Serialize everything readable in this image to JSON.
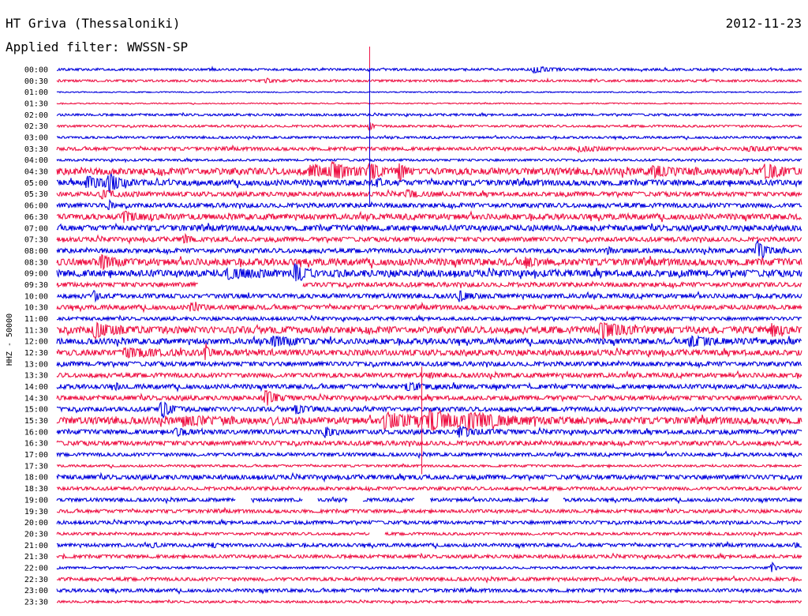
{
  "header": {
    "station": "HT Griva (Thessaloniki)",
    "date": "2012-11-23",
    "filter": "Applied filter: WWSSN-SP"
  },
  "chart_data": {
    "type": "line",
    "title": "HT Griva (Thessaloniki)",
    "ylabel": "HHZ - 50000",
    "categories": [
      "00:00",
      "00:30",
      "01:00",
      "01:30",
      "02:00",
      "02:30",
      "03:00",
      "03:30",
      "04:00",
      "04:30",
      "05:00",
      "05:30",
      "06:00",
      "06:30",
      "07:00",
      "07:30",
      "08:00",
      "08:30",
      "09:00",
      "09:30",
      "10:00",
      "10:30",
      "11:00",
      "11:30",
      "12:00",
      "12:30",
      "13:00",
      "13:30",
      "14:00",
      "14:30",
      "15:00",
      "15:30",
      "16:00",
      "16:30",
      "17:00",
      "17:30",
      "18:00",
      "18:30",
      "19:00",
      "19:30",
      "20:00",
      "20:30",
      "21:00",
      "21:30",
      "22:00",
      "22:30",
      "23:00",
      "23:30"
    ],
    "colors": [
      "#0000dd",
      "#ee1144"
    ],
    "noise_level": [
      1,
      1,
      0.5,
      0.5,
      1,
      1,
      1,
      1.5,
      1,
      3,
      2.5,
      2,
      2,
      2.5,
      2.5,
      2,
      2,
      3,
      3,
      2,
      2,
      2,
      1.5,
      3,
      2.5,
      2.5,
      2,
      2,
      2,
      2,
      2,
      3,
      2,
      2,
      1.5,
      1,
      2,
      1.5,
      1.5,
      1.5,
      1.5,
      1.2,
      1.5,
      1.5,
      1,
      1.5,
      1.5,
      1
    ],
    "events": [
      [
        0,
        0.64,
        4,
        0.02
      ],
      [
        1,
        0.28,
        2,
        0.01
      ],
      [
        5,
        0.42,
        6,
        0.0
      ],
      [
        7,
        0.7,
        3,
        0.02
      ],
      [
        7,
        0.93,
        3,
        0.02
      ],
      [
        9,
        0.34,
        6,
        0.03
      ],
      [
        9,
        0.37,
        8,
        0.02
      ],
      [
        9,
        0.42,
        10,
        0.01
      ],
      [
        9,
        0.46,
        14,
        0.0
      ],
      [
        9,
        0.8,
        6,
        0.02
      ],
      [
        9,
        0.95,
        8,
        0.02
      ],
      [
        10,
        0.04,
        7,
        0.02
      ],
      [
        10,
        0.07,
        12,
        0.01
      ],
      [
        10,
        0.43,
        5,
        0.0
      ],
      [
        11,
        0.06,
        4,
        0.02
      ],
      [
        11,
        0.47,
        5,
        0.01
      ],
      [
        12,
        0.07,
        6,
        0.0
      ],
      [
        13,
        0.09,
        5,
        0.02
      ],
      [
        15,
        0.17,
        5,
        0.01
      ],
      [
        16,
        0.94,
        14,
        0.01
      ],
      [
        16,
        0.74,
        5,
        0.0
      ],
      [
        17,
        0.06,
        10,
        0.01
      ],
      [
        17,
        0.63,
        5,
        0.01
      ],
      [
        18,
        0.23,
        5,
        0.03
      ],
      [
        18,
        0.32,
        12,
        0.01
      ],
      [
        19,
        0.29,
        4,
        0.01
      ],
      [
        20,
        0.05,
        6,
        0.0
      ],
      [
        20,
        0.54,
        7,
        0.01
      ],
      [
        21,
        0.18,
        5,
        0.01
      ],
      [
        23,
        0.05,
        10,
        0.02
      ],
      [
        23,
        0.73,
        8,
        0.03
      ],
      [
        23,
        0.96,
        7,
        0.01
      ],
      [
        24,
        0.29,
        6,
        0.02
      ],
      [
        24,
        0.85,
        5,
        0.03
      ],
      [
        25,
        0.2,
        11,
        0.0
      ],
      [
        25,
        0.09,
        4,
        0.04
      ],
      [
        27,
        0.5,
        3,
        0.0
      ],
      [
        28,
        0.08,
        4,
        0.0
      ],
      [
        28,
        0.47,
        4,
        0.02
      ],
      [
        29,
        0.28,
        11,
        0.01
      ],
      [
        30,
        0.14,
        12,
        0.01
      ],
      [
        30,
        0.32,
        4,
        0.02
      ],
      [
        31,
        0.44,
        8,
        0.05
      ],
      [
        31,
        0.5,
        10,
        0.03
      ],
      [
        31,
        0.55,
        8,
        0.04
      ],
      [
        31,
        0.17,
        4,
        0.03
      ],
      [
        32,
        0.16,
        5,
        0.01
      ],
      [
        32,
        0.36,
        6,
        0.01
      ],
      [
        32,
        0.54,
        6,
        0.02
      ],
      [
        36,
        0.48,
        2,
        0.0
      ],
      [
        42,
        0.13,
        3,
        0.0
      ],
      [
        42,
        0.21,
        3,
        0.0
      ],
      [
        42,
        0.99,
        3,
        0.01
      ],
      [
        44,
        0.96,
        7,
        0.0
      ]
    ],
    "spikes": [
      [
        3,
        0.42,
        18,
        1
      ],
      [
        6,
        0.42,
        22,
        0
      ],
      [
        31,
        0.49,
        17,
        1
      ]
    ],
    "gaps": [
      [
        19,
        0.19,
        0.33
      ],
      [
        38,
        0.24,
        0.26
      ],
      [
        38,
        0.33,
        0.35
      ],
      [
        38,
        0.39,
        0.41
      ],
      [
        38,
        0.48,
        0.5
      ],
      [
        38,
        0.66,
        0.68
      ],
      [
        41,
        0.42,
        0.44
      ]
    ]
  }
}
